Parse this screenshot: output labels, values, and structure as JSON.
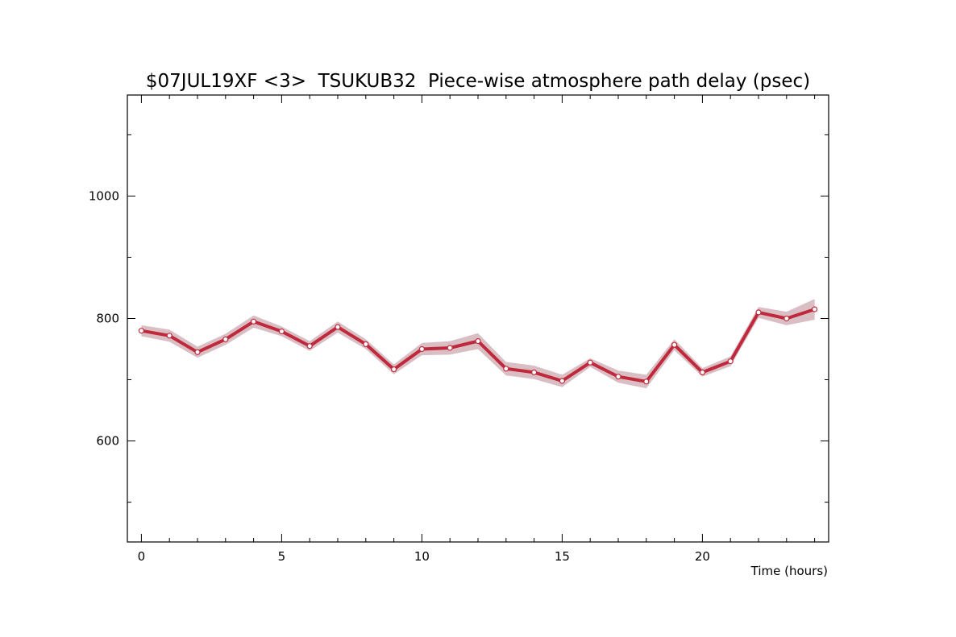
{
  "colors": {
    "line": "#c0283c",
    "band": "#d9bfc4",
    "marker_fill": "#ffffff",
    "axis": "#000000"
  },
  "chart_data": {
    "type": "line",
    "title": "$07JUL19XF <3>  TSUKUB32  Piece-wise atmosphere path delay (psec)",
    "xlabel": "Time (hours)",
    "ylabel": "",
    "xlim": [
      -0.5,
      24.5
    ],
    "ylim": [
      435,
      1165
    ],
    "x_ticks": [
      0,
      5,
      10,
      15,
      20
    ],
    "x_tick_labels": [
      "0",
      "5",
      "10",
      "15",
      "20"
    ],
    "y_ticks": [
      600,
      800,
      1000
    ],
    "y_tick_labels": [
      "600",
      "800",
      "1000"
    ],
    "y_minor_ticks": [
      500,
      700,
      900,
      1100
    ],
    "grid": false,
    "series": [
      {
        "x": [
          0,
          1,
          2,
          3,
          4,
          5,
          6,
          7,
          8,
          9,
          10,
          11,
          12,
          13,
          14,
          15,
          16,
          17,
          18,
          19,
          20,
          21,
          22,
          23,
          24
        ],
        "values": [
          780,
          772,
          745,
          766,
          795,
          779,
          755,
          786,
          758,
          717,
          750,
          752,
          763,
          718,
          712,
          698,
          728,
          705,
          697,
          757,
          712,
          730,
          810,
          800,
          815
        ],
        "errors": [
          9,
          10,
          9,
          9,
          10,
          8,
          8,
          9,
          8,
          8,
          10,
          11,
          13,
          11,
          11,
          10,
          7,
          10,
          11,
          9,
          7,
          8,
          9,
          11,
          17
        ]
      }
    ]
  }
}
